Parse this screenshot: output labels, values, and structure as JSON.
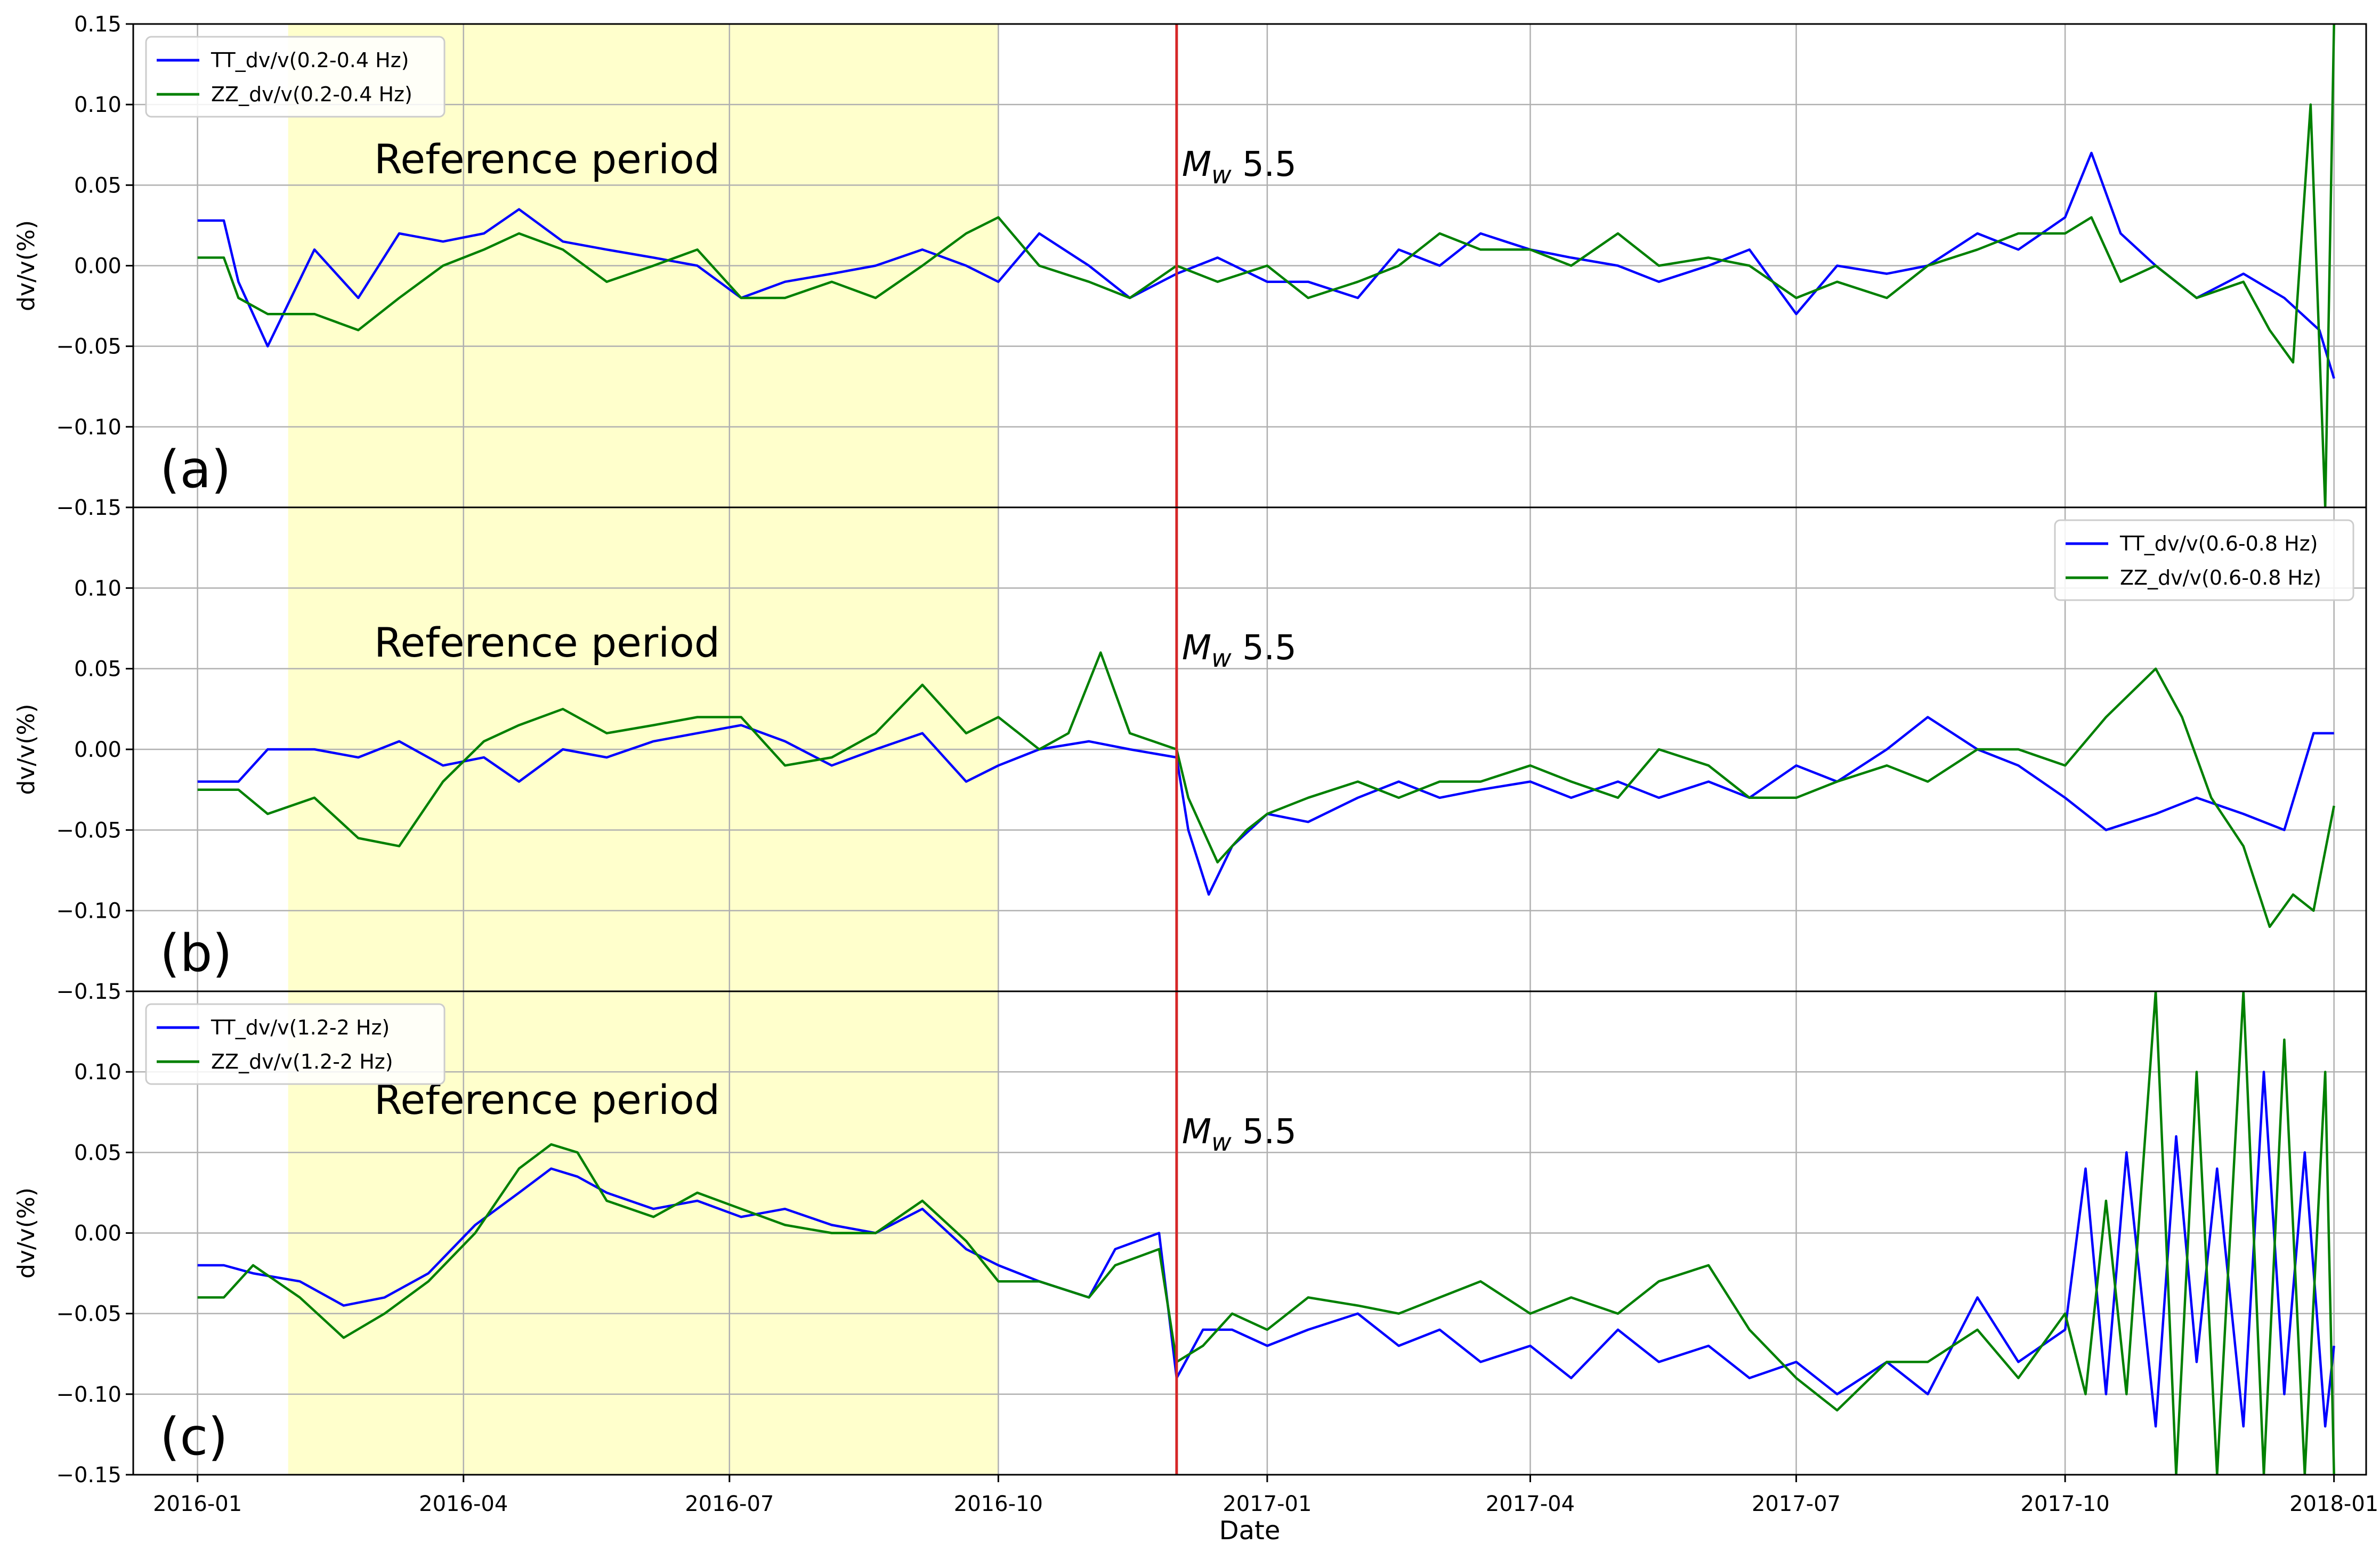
{
  "figure": {
    "xlabel": "Date",
    "xlim": [
      "2015-12-10",
      "2018-01-12"
    ],
    "xticks": [
      "2016-01",
      "2016-04",
      "2016-07",
      "2016-10",
      "2017-01",
      "2017-04",
      "2017-07",
      "2017-10",
      "2018-01"
    ],
    "reference_period": [
      "2016-02-01",
      "2016-10-01"
    ],
    "reference_label": "Reference period",
    "event_date": "2016-12-01",
    "event_label_italic": "M",
    "event_label_sub": "w",
    "event_label_rest": " 5.5",
    "colors": {
      "tt": "#0000ff",
      "zz": "#008000",
      "event": "#d62728",
      "reference": "#ffffcc",
      "grid": "#b0b0b0"
    }
  },
  "chart_data": [
    {
      "type": "line",
      "panel_label": "(a)",
      "ylabel": "dv/v(%)",
      "ylim": [
        -0.15,
        0.15
      ],
      "yticks": [
        0.15,
        0.1,
        0.05,
        0.0,
        -0.05,
        -0.1,
        -0.15
      ],
      "ytick_labels": [
        "0.15",
        "0.10",
        "0.05",
        "0.00",
        "−0.05",
        "−0.10",
        "−0.15"
      ],
      "legend_position": "upper-left",
      "grid": true,
      "series": [
        {
          "name": "TT_dv/v(0.2-0.4 Hz)",
          "color": "#0000ff",
          "x": [
            "2016-01-01",
            "2016-01-10",
            "2016-01-15",
            "2016-01-25",
            "2016-02-10",
            "2016-02-25",
            "2016-03-10",
            "2016-03-25",
            "2016-04-08",
            "2016-04-20",
            "2016-05-05",
            "2016-05-20",
            "2016-06-05",
            "2016-06-20",
            "2016-07-05",
            "2016-07-20",
            "2016-08-05",
            "2016-08-20",
            "2016-09-05",
            "2016-09-20",
            "2016-10-01",
            "2016-10-15",
            "2016-11-01",
            "2016-11-15",
            "2016-12-01",
            "2016-12-15",
            "2017-01-01",
            "2017-01-15",
            "2017-02-01",
            "2017-02-15",
            "2017-03-01",
            "2017-03-15",
            "2017-04-01",
            "2017-04-15",
            "2017-05-01",
            "2017-05-15",
            "2017-06-01",
            "2017-06-15",
            "2017-07-01",
            "2017-07-15",
            "2017-08-01",
            "2017-08-15",
            "2017-09-01",
            "2017-09-15",
            "2017-10-01",
            "2017-10-10",
            "2017-10-20",
            "2017-11-01",
            "2017-11-15",
            "2017-12-01",
            "2017-12-15",
            "2017-12-27",
            "2018-01-01"
          ],
          "y": [
            0.028,
            0.028,
            -0.01,
            -0.05,
            0.01,
            -0.02,
            0.02,
            0.015,
            0.02,
            0.035,
            0.015,
            0.01,
            0.005,
            0.0,
            -0.02,
            -0.01,
            -0.005,
            0.0,
            0.01,
            0.0,
            -0.01,
            0.02,
            0.0,
            -0.02,
            -0.005,
            0.005,
            -0.01,
            -0.01,
            -0.02,
            0.01,
            0.0,
            0.02,
            0.01,
            0.005,
            0.0,
            -0.01,
            0.0,
            0.01,
            -0.03,
            0.0,
            -0.005,
            0.0,
            0.02,
            0.01,
            0.03,
            0.07,
            0.02,
            0.0,
            -0.02,
            -0.005,
            -0.02,
            -0.04,
            -0.07
          ]
        },
        {
          "name": "ZZ_dv/v(0.2-0.4 Hz)",
          "color": "#008000",
          "x": [
            "2016-01-01",
            "2016-01-10",
            "2016-01-15",
            "2016-01-25",
            "2016-02-10",
            "2016-02-25",
            "2016-03-10",
            "2016-03-25",
            "2016-04-08",
            "2016-04-20",
            "2016-05-05",
            "2016-05-20",
            "2016-06-05",
            "2016-06-20",
            "2016-07-05",
            "2016-07-20",
            "2016-08-05",
            "2016-08-20",
            "2016-09-05",
            "2016-09-20",
            "2016-10-01",
            "2016-10-15",
            "2016-11-01",
            "2016-11-15",
            "2016-12-01",
            "2016-12-15",
            "2017-01-01",
            "2017-01-15",
            "2017-02-01",
            "2017-02-15",
            "2017-03-01",
            "2017-03-15",
            "2017-04-01",
            "2017-04-15",
            "2017-05-01",
            "2017-05-15",
            "2017-06-01",
            "2017-06-15",
            "2017-07-01",
            "2017-07-15",
            "2017-08-01",
            "2017-08-15",
            "2017-09-01",
            "2017-09-15",
            "2017-10-01",
            "2017-10-10",
            "2017-10-20",
            "2017-11-01",
            "2017-11-15",
            "2017-12-01",
            "2017-12-10",
            "2017-12-18",
            "2017-12-24",
            "2017-12-29",
            "2018-01-01"
          ],
          "y": [
            0.005,
            0.005,
            -0.02,
            -0.03,
            -0.03,
            -0.04,
            -0.02,
            0.0,
            0.01,
            0.02,
            0.01,
            -0.01,
            0.0,
            0.01,
            -0.02,
            -0.02,
            -0.01,
            -0.02,
            0.0,
            0.02,
            0.03,
            0.0,
            -0.01,
            -0.02,
            0.0,
            -0.01,
            0.0,
            -0.02,
            -0.01,
            0.0,
            0.02,
            0.01,
            0.01,
            0.0,
            0.02,
            0.0,
            0.005,
            0.0,
            -0.02,
            -0.01,
            -0.02,
            0.0,
            0.01,
            0.02,
            0.02,
            0.03,
            -0.01,
            0.0,
            -0.02,
            -0.01,
            -0.04,
            -0.06,
            0.1,
            -0.15,
            0.15
          ]
        }
      ]
    },
    {
      "type": "line",
      "panel_label": "(b)",
      "ylabel": "dv/v(%)",
      "ylim": [
        -0.15,
        0.15
      ],
      "yticks": [
        0.1,
        0.05,
        0.0,
        -0.05,
        -0.1,
        -0.15
      ],
      "ytick_labels": [
        "0.10",
        "0.05",
        "0.00",
        "−0.05",
        "−0.10",
        "−0.15"
      ],
      "legend_position": "upper-right",
      "grid": true,
      "series": [
        {
          "name": "TT_dv/v(0.6-0.8 Hz)",
          "color": "#0000ff",
          "x": [
            "2016-01-01",
            "2016-01-15",
            "2016-01-25",
            "2016-02-10",
            "2016-02-25",
            "2016-03-10",
            "2016-03-25",
            "2016-04-08",
            "2016-04-20",
            "2016-05-05",
            "2016-05-20",
            "2016-06-05",
            "2016-06-20",
            "2016-07-05",
            "2016-07-20",
            "2016-08-05",
            "2016-08-20",
            "2016-09-05",
            "2016-09-20",
            "2016-10-01",
            "2016-10-15",
            "2016-11-01",
            "2016-11-15",
            "2016-12-01",
            "2016-12-05",
            "2016-12-12",
            "2016-12-20",
            "2017-01-01",
            "2017-01-15",
            "2017-02-01",
            "2017-02-15",
            "2017-03-01",
            "2017-03-15",
            "2017-04-01",
            "2017-04-15",
            "2017-05-01",
            "2017-05-15",
            "2017-06-01",
            "2017-06-15",
            "2017-07-01",
            "2017-07-15",
            "2017-08-01",
            "2017-08-15",
            "2017-09-01",
            "2017-09-15",
            "2017-10-01",
            "2017-10-15",
            "2017-11-01",
            "2017-11-15",
            "2017-12-01",
            "2017-12-15",
            "2017-12-25",
            "2018-01-01"
          ],
          "y": [
            -0.02,
            -0.02,
            0.0,
            0.0,
            -0.005,
            0.005,
            -0.01,
            -0.005,
            -0.02,
            0.0,
            -0.005,
            0.005,
            0.01,
            0.015,
            0.005,
            -0.01,
            0.0,
            0.01,
            -0.02,
            -0.01,
            0.0,
            0.005,
            0.0,
            -0.005,
            -0.05,
            -0.09,
            -0.06,
            -0.04,
            -0.045,
            -0.03,
            -0.02,
            -0.03,
            -0.025,
            -0.02,
            -0.03,
            -0.02,
            -0.03,
            -0.02,
            -0.03,
            -0.01,
            -0.02,
            0.0,
            0.02,
            0.0,
            -0.01,
            -0.03,
            -0.05,
            -0.04,
            -0.03,
            -0.04,
            -0.05,
            0.01,
            0.01
          ]
        },
        {
          "name": "ZZ_dv/v(0.6-0.8 Hz)",
          "color": "#008000",
          "x": [
            "2016-01-01",
            "2016-01-15",
            "2016-01-25",
            "2016-02-10",
            "2016-02-25",
            "2016-03-10",
            "2016-03-25",
            "2016-04-08",
            "2016-04-20",
            "2016-05-05",
            "2016-05-20",
            "2016-06-05",
            "2016-06-20",
            "2016-07-05",
            "2016-07-20",
            "2016-08-05",
            "2016-08-20",
            "2016-09-05",
            "2016-09-20",
            "2016-10-01",
            "2016-10-15",
            "2016-10-25",
            "2016-11-05",
            "2016-11-15",
            "2016-12-01",
            "2016-12-05",
            "2016-12-15",
            "2016-12-25",
            "2017-01-01",
            "2017-01-15",
            "2017-02-01",
            "2017-02-15",
            "2017-03-01",
            "2017-03-15",
            "2017-04-01",
            "2017-04-15",
            "2017-05-01",
            "2017-05-15",
            "2017-06-01",
            "2017-06-15",
            "2017-07-01",
            "2017-07-15",
            "2017-08-01",
            "2017-08-15",
            "2017-09-01",
            "2017-09-15",
            "2017-10-01",
            "2017-10-15",
            "2017-11-01",
            "2017-11-10",
            "2017-11-20",
            "2017-12-01",
            "2017-12-10",
            "2017-12-18",
            "2017-12-25",
            "2018-01-01"
          ],
          "y": [
            -0.025,
            -0.025,
            -0.04,
            -0.03,
            -0.055,
            -0.06,
            -0.02,
            0.005,
            0.015,
            0.025,
            0.01,
            0.015,
            0.02,
            0.02,
            -0.01,
            -0.005,
            0.01,
            0.04,
            0.01,
            0.02,
            0.0,
            0.01,
            0.06,
            0.01,
            0.0,
            -0.03,
            -0.07,
            -0.05,
            -0.04,
            -0.03,
            -0.02,
            -0.03,
            -0.02,
            -0.02,
            -0.01,
            -0.02,
            -0.03,
            0.0,
            -0.01,
            -0.03,
            -0.03,
            -0.02,
            -0.01,
            -0.02,
            0.0,
            0.0,
            -0.01,
            0.02,
            0.05,
            0.02,
            -0.03,
            -0.06,
            -0.11,
            -0.09,
            -0.1,
            -0.035
          ]
        }
      ]
    },
    {
      "type": "line",
      "panel_label": "(c)",
      "xlabel": "Date",
      "ylabel": "dv/v(%)",
      "ylim": [
        -0.15,
        0.15
      ],
      "yticks": [
        0.1,
        0.05,
        0.0,
        -0.05,
        -0.1,
        -0.15
      ],
      "ytick_labels": [
        "0.10",
        "0.05",
        "0.00",
        "−0.05",
        "−0.10",
        "−0.15"
      ],
      "legend_position": "upper-left",
      "grid": true,
      "series": [
        {
          "name": "TT_dv/v(1.2-2 Hz)",
          "color": "#0000ff",
          "x": [
            "2016-01-01",
            "2016-01-10",
            "2016-01-20",
            "2016-02-05",
            "2016-02-20",
            "2016-03-05",
            "2016-03-20",
            "2016-04-05",
            "2016-04-20",
            "2016-05-01",
            "2016-05-10",
            "2016-05-20",
            "2016-06-05",
            "2016-06-20",
            "2016-07-05",
            "2016-07-20",
            "2016-08-05",
            "2016-08-20",
            "2016-09-05",
            "2016-09-20",
            "2016-10-01",
            "2016-10-15",
            "2016-11-01",
            "2016-11-10",
            "2016-11-25",
            "2016-12-01",
            "2016-12-10",
            "2016-12-20",
            "2017-01-01",
            "2017-01-15",
            "2017-02-01",
            "2017-02-15",
            "2017-03-01",
            "2017-03-15",
            "2017-04-01",
            "2017-04-15",
            "2017-05-01",
            "2017-05-15",
            "2017-06-01",
            "2017-06-15",
            "2017-07-01",
            "2017-07-15",
            "2017-08-01",
            "2017-08-15",
            "2017-09-01",
            "2017-09-15",
            "2017-10-01",
            "2017-10-08",
            "2017-10-15",
            "2017-10-22",
            "2017-11-01",
            "2017-11-08",
            "2017-11-15",
            "2017-11-22",
            "2017-12-01",
            "2017-12-08",
            "2017-12-15",
            "2017-12-22",
            "2017-12-29",
            "2018-01-01"
          ],
          "y": [
            -0.02,
            -0.02,
            -0.025,
            -0.03,
            -0.045,
            -0.04,
            -0.025,
            0.005,
            0.025,
            0.04,
            0.035,
            0.025,
            0.015,
            0.02,
            0.01,
            0.015,
            0.005,
            0.0,
            0.015,
            -0.01,
            -0.02,
            -0.03,
            -0.04,
            -0.01,
            0.0,
            -0.09,
            -0.06,
            -0.06,
            -0.07,
            -0.06,
            -0.05,
            -0.07,
            -0.06,
            -0.08,
            -0.07,
            -0.09,
            -0.06,
            -0.08,
            -0.07,
            -0.09,
            -0.08,
            -0.1,
            -0.08,
            -0.1,
            -0.04,
            -0.08,
            -0.06,
            0.04,
            -0.1,
            0.05,
            -0.12,
            0.06,
            -0.08,
            0.04,
            -0.12,
            0.1,
            -0.1,
            0.05,
            -0.12,
            -0.07
          ]
        },
        {
          "name": "ZZ_dv/v(1.2-2 Hz)",
          "color": "#008000",
          "x": [
            "2016-01-01",
            "2016-01-10",
            "2016-01-20",
            "2016-02-05",
            "2016-02-20",
            "2016-03-05",
            "2016-03-20",
            "2016-04-05",
            "2016-04-20",
            "2016-05-01",
            "2016-05-10",
            "2016-05-20",
            "2016-06-05",
            "2016-06-20",
            "2016-07-05",
            "2016-07-20",
            "2016-08-05",
            "2016-08-20",
            "2016-09-05",
            "2016-09-20",
            "2016-10-01",
            "2016-10-15",
            "2016-11-01",
            "2016-11-10",
            "2016-11-25",
            "2016-12-01",
            "2016-12-10",
            "2016-12-20",
            "2017-01-01",
            "2017-01-15",
            "2017-02-01",
            "2017-02-15",
            "2017-03-01",
            "2017-03-15",
            "2017-04-01",
            "2017-04-15",
            "2017-05-01",
            "2017-05-15",
            "2017-06-01",
            "2017-06-15",
            "2017-07-01",
            "2017-07-15",
            "2017-08-01",
            "2017-08-15",
            "2017-09-01",
            "2017-09-15",
            "2017-10-01",
            "2017-10-08",
            "2017-10-15",
            "2017-10-22",
            "2017-11-01",
            "2017-11-08",
            "2017-11-15",
            "2017-11-22",
            "2017-12-01",
            "2017-12-08",
            "2017-12-15",
            "2017-12-22",
            "2017-12-29",
            "2018-01-01"
          ],
          "y": [
            -0.04,
            -0.04,
            -0.02,
            -0.04,
            -0.065,
            -0.05,
            -0.03,
            0.0,
            0.04,
            0.055,
            0.05,
            0.02,
            0.01,
            0.025,
            0.015,
            0.005,
            0.0,
            0.0,
            0.02,
            -0.005,
            -0.03,
            -0.03,
            -0.04,
            -0.02,
            -0.01,
            -0.08,
            -0.07,
            -0.05,
            -0.06,
            -0.04,
            -0.045,
            -0.05,
            -0.04,
            -0.03,
            -0.05,
            -0.04,
            -0.05,
            -0.03,
            -0.02,
            -0.06,
            -0.09,
            -0.11,
            -0.08,
            -0.08,
            -0.06,
            -0.09,
            -0.05,
            -0.1,
            0.02,
            -0.1,
            0.15,
            -0.15,
            0.1,
            -0.15,
            0.15,
            -0.15,
            0.12,
            -0.15,
            0.1,
            -0.15
          ]
        }
      ]
    }
  ]
}
